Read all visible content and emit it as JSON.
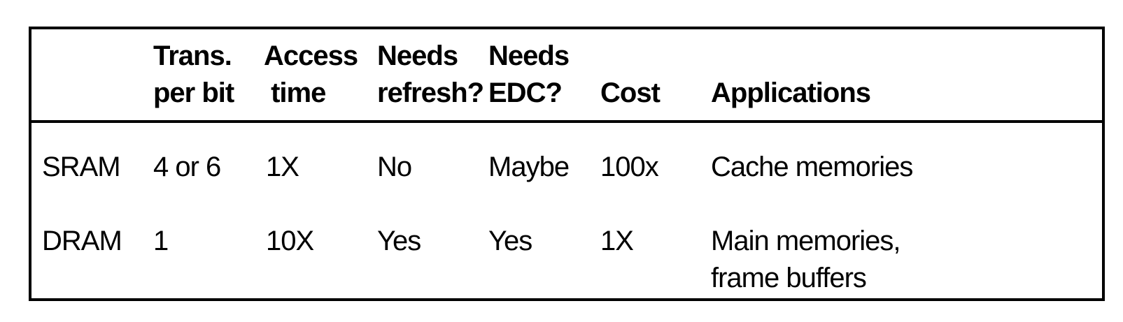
{
  "table": {
    "headers": [
      {
        "line1": "",
        "line2": ""
      },
      {
        "line1": "Trans.",
        "line2": "per bit"
      },
      {
        "line1": "Access",
        "line2": " time"
      },
      {
        "line1": "Needs",
        "line2": "refresh?"
      },
      {
        "line1": "Needs",
        "line2": "EDC?"
      },
      {
        "line1": "",
        "line2": "Cost"
      },
      {
        "line1": "",
        "line2": "Applications"
      }
    ],
    "rows": [
      {
        "type": "SRAM",
        "trans_per_bit": "4 or 6",
        "access_time": "1X",
        "needs_refresh": "No",
        "needs_edc": "Maybe",
        "cost": "100x",
        "applications": [
          "Cache memories"
        ]
      },
      {
        "type": "DRAM",
        "trans_per_bit": "1",
        "access_time": "10X",
        "needs_refresh": "Yes",
        "needs_edc": "Yes",
        "cost": "1X",
        "applications": [
          "Main memories,",
          "frame buffers"
        ]
      }
    ]
  }
}
